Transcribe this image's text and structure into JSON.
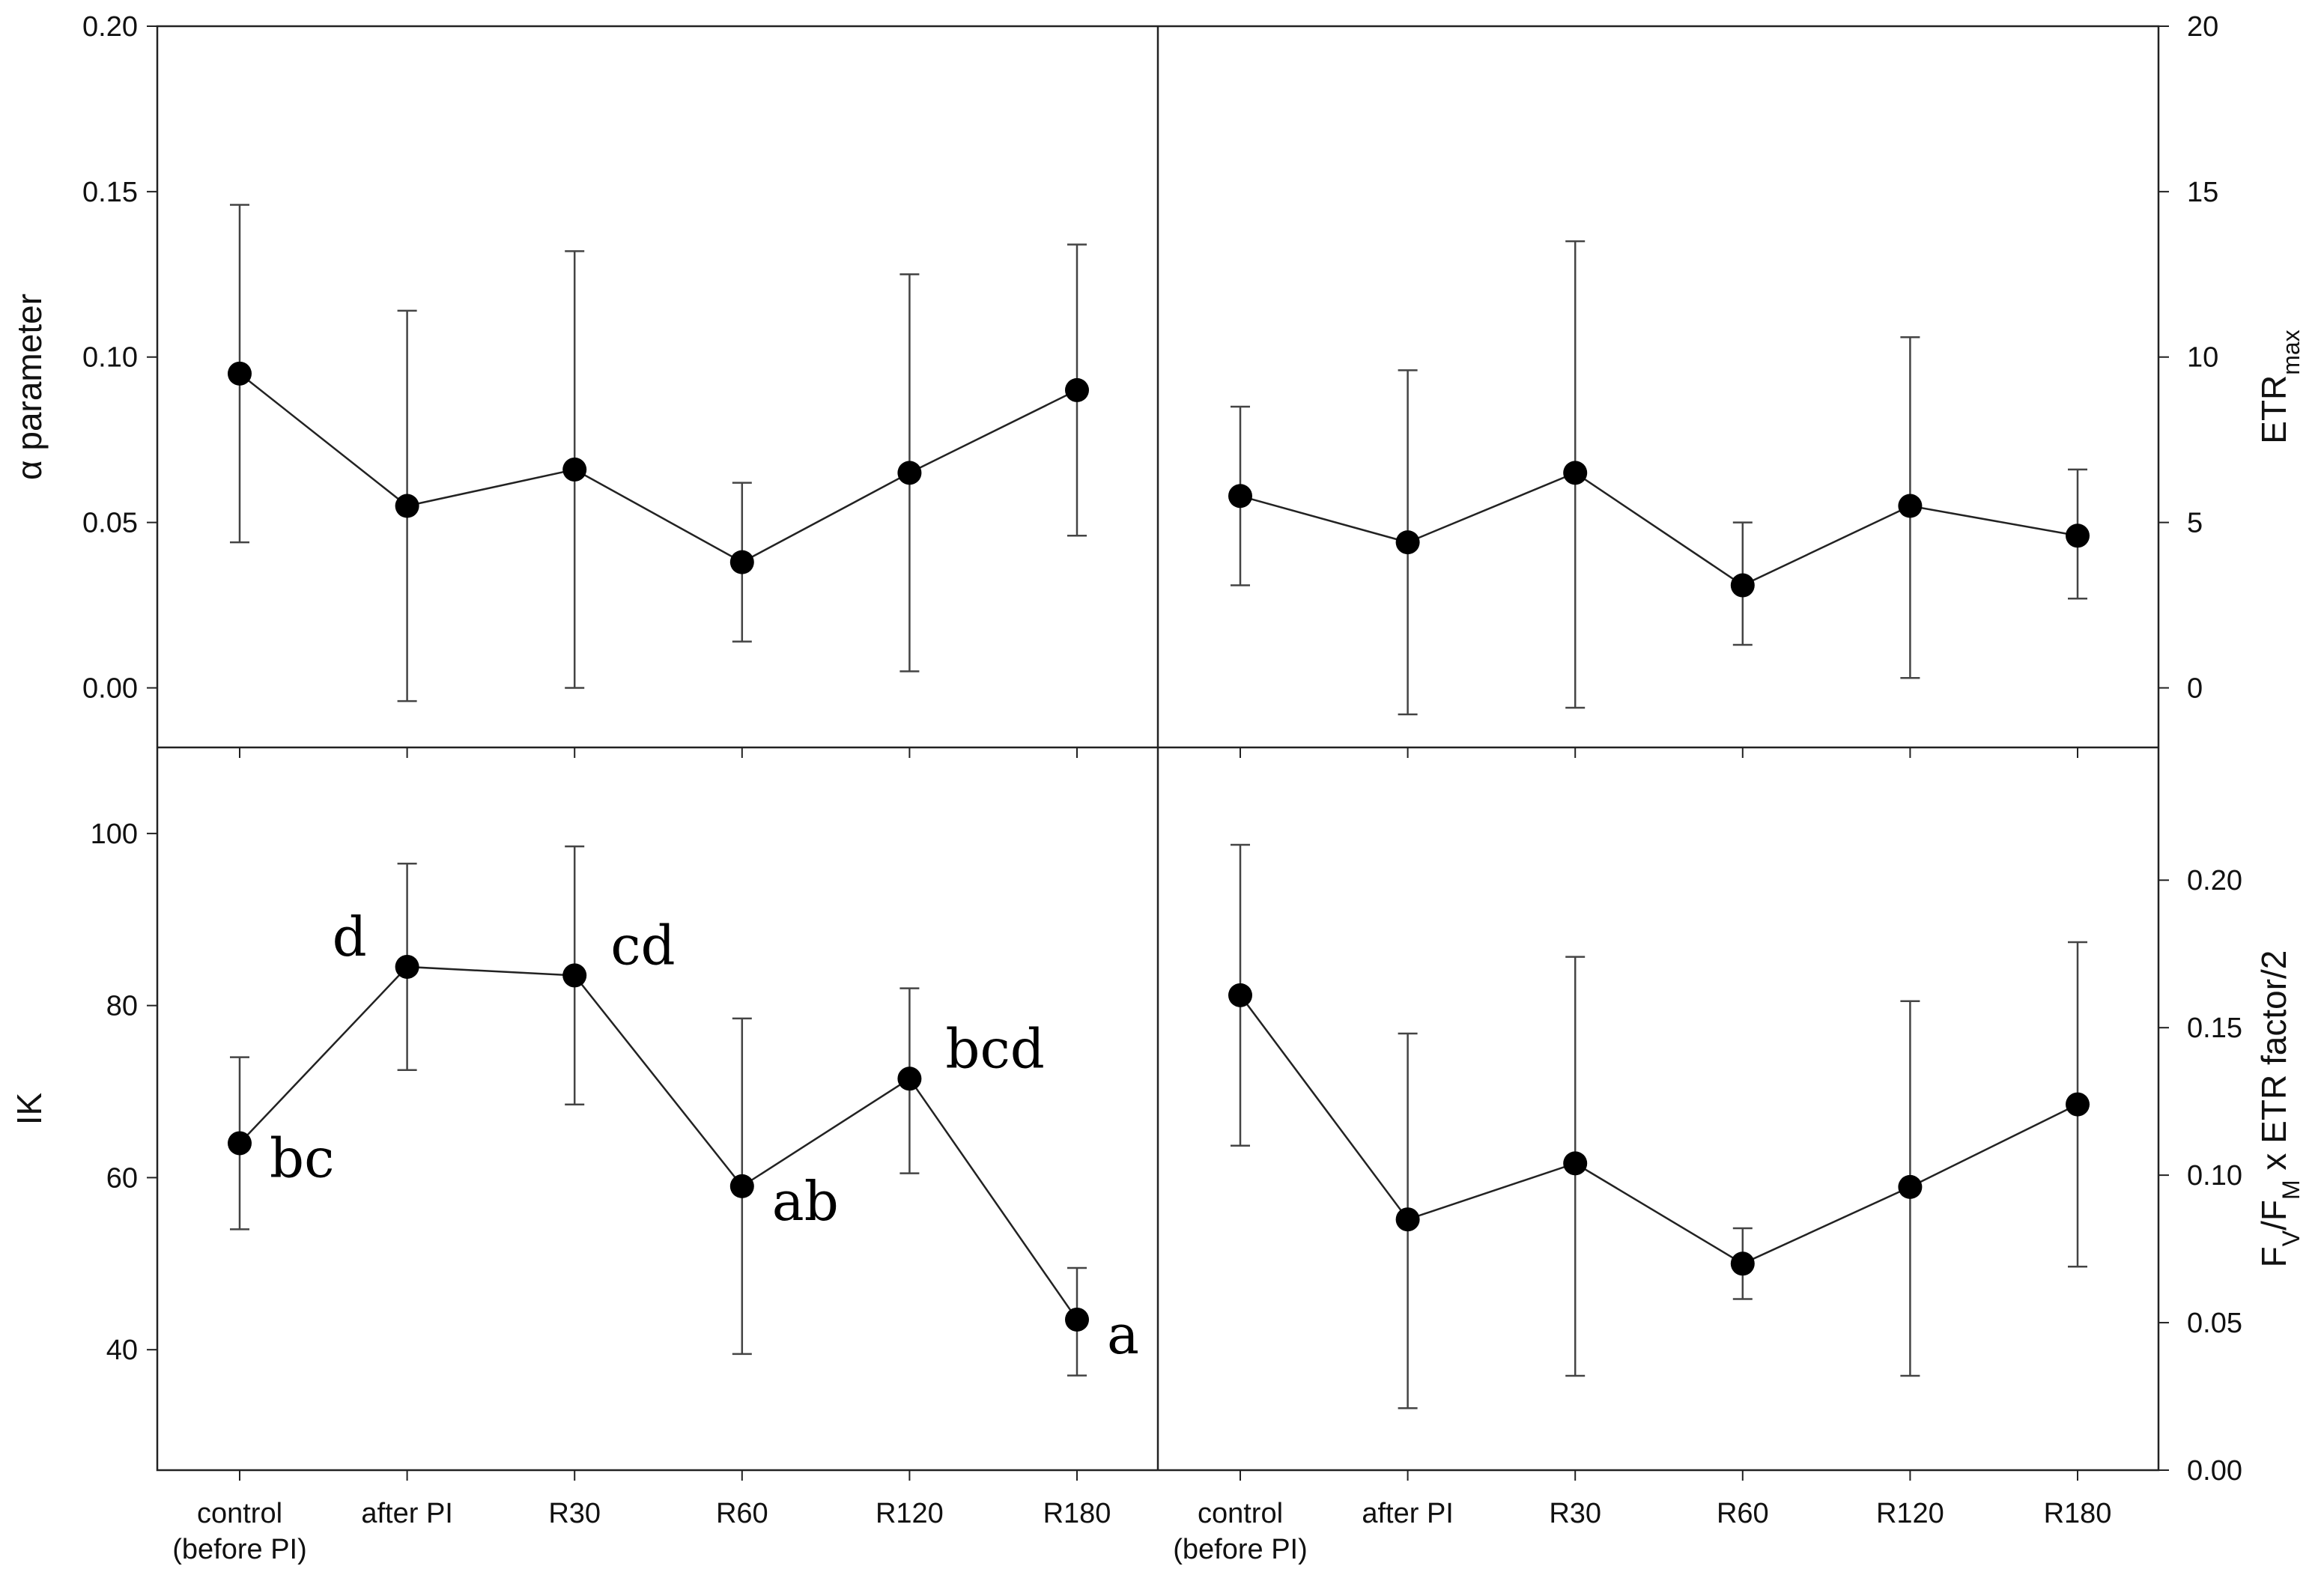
{
  "chart_data": [
    {
      "type": "line",
      "panel": "top-left",
      "categories": [
        "control (before PI)",
        "after PI",
        "R30",
        "R60",
        "R120",
        "R180"
      ],
      "category_labels": [
        [
          "control",
          "(before PI)"
        ],
        [
          "after PI"
        ],
        [
          "R30"
        ],
        [
          "R60"
        ],
        [
          "R120"
        ],
        [
          "R180"
        ]
      ],
      "ylabel": "α parameter",
      "ylabel_side": "left",
      "ylim": [
        -0.018,
        0.2
      ],
      "yticks": [
        0,
        0.05,
        0.1,
        0.15,
        0.2
      ],
      "ytick_labels": [
        "0.00",
        "0.05",
        "0.10",
        "0.15",
        "0.20"
      ],
      "values": [
        0.095,
        0.055,
        0.066,
        0.038,
        0.065,
        0.09
      ],
      "error_low": [
        0.044,
        -0.004,
        0.0,
        0.014,
        0.005,
        0.046
      ],
      "error_high": [
        0.146,
        0.114,
        0.132,
        0.062,
        0.125,
        0.134
      ],
      "annotations": []
    },
    {
      "type": "line",
      "panel": "top-right",
      "categories": [
        "control (before PI)",
        "after PI",
        "R30",
        "R60",
        "R120",
        "R180"
      ],
      "category_labels": [
        [
          "control",
          "(before PI)"
        ],
        [
          "after PI"
        ],
        [
          "R30"
        ],
        [
          "R60"
        ],
        [
          "R120"
        ],
        [
          "R180"
        ]
      ],
      "ylabel": "ETR",
      "ylabel_subscript": "max",
      "ylabel_side": "right",
      "ylim": [
        -1.8,
        20
      ],
      "yticks": [
        0,
        5,
        10,
        15,
        20
      ],
      "ytick_labels": [
        "0",
        "5",
        "10",
        "15",
        "20"
      ],
      "values": [
        5.8,
        4.4,
        6.5,
        3.1,
        5.5,
        4.6
      ],
      "error_low": [
        3.1,
        -0.8,
        -0.6,
        1.3,
        0.3,
        2.7
      ],
      "error_high": [
        8.5,
        9.6,
        13.5,
        5.0,
        10.6,
        6.6
      ],
      "annotations": []
    },
    {
      "type": "line",
      "panel": "bottom-left",
      "categories": [
        "control (before PI)",
        "after PI",
        "R30",
        "R60",
        "R120",
        "R180"
      ],
      "category_labels": [
        [
          "control",
          "(before PI)"
        ],
        [
          "after PI"
        ],
        [
          "R30"
        ],
        [
          "R60"
        ],
        [
          "R120"
        ],
        [
          "R180"
        ]
      ],
      "ylabel": "IK",
      "ylabel_side": "left",
      "ylim": [
        26,
        110
      ],
      "yticks": [
        40,
        60,
        80,
        100
      ],
      "ytick_labels": [
        "40",
        "60",
        "80",
        "100"
      ],
      "values": [
        64,
        84.5,
        83.5,
        59,
        71.5,
        43.5
      ],
      "error_low": [
        54,
        72.5,
        68.5,
        39.5,
        60.5,
        37
      ],
      "error_high": [
        74,
        96.5,
        98.5,
        78.5,
        82,
        49.5
      ],
      "annotations": [
        {
          "text": "bc",
          "point": 0,
          "position": "below-right"
        },
        {
          "text": "d",
          "point": 1,
          "position": "above-left"
        },
        {
          "text": "cd",
          "point": 2,
          "position": "above-right"
        },
        {
          "text": "ab",
          "point": 3,
          "position": "below-right"
        },
        {
          "text": "bcd",
          "point": 4,
          "position": "above-right"
        },
        {
          "text": "a",
          "point": 5,
          "position": "below-right"
        }
      ]
    },
    {
      "type": "line",
      "panel": "bottom-right",
      "categories": [
        "control (before PI)",
        "after PI",
        "R30",
        "R60",
        "R120",
        "R180"
      ],
      "category_labels": [
        [
          "control",
          "(before PI)"
        ],
        [
          "after PI"
        ],
        [
          "R30"
        ],
        [
          "R60"
        ],
        [
          "R120"
        ],
        [
          "R180"
        ]
      ],
      "ylabel": "FV/FM x ETR factor/2",
      "ylabel_parts": [
        {
          "text": "F",
          "sub": false
        },
        {
          "text": "V",
          "sub": true
        },
        {
          "text": "/F",
          "sub": false
        },
        {
          "text": "M",
          "sub": true
        },
        {
          "text": " x  ETR factor/2",
          "sub": false
        }
      ],
      "ylabel_side": "right",
      "ylim": [
        0,
        0.245
      ],
      "yticks": [
        0,
        0.05,
        0.1,
        0.15,
        0.2
      ],
      "ytick_labels": [
        "0.00",
        "0.05",
        "0.10",
        "0.15",
        "0.20"
      ],
      "values": [
        0.161,
        0.085,
        0.104,
        0.07,
        0.096,
        0.124
      ],
      "error_low": [
        0.11,
        0.021,
        0.032,
        0.058,
        0.032,
        0.069
      ],
      "error_high": [
        0.212,
        0.148,
        0.174,
        0.082,
        0.159,
        0.179
      ],
      "annotations": []
    }
  ]
}
